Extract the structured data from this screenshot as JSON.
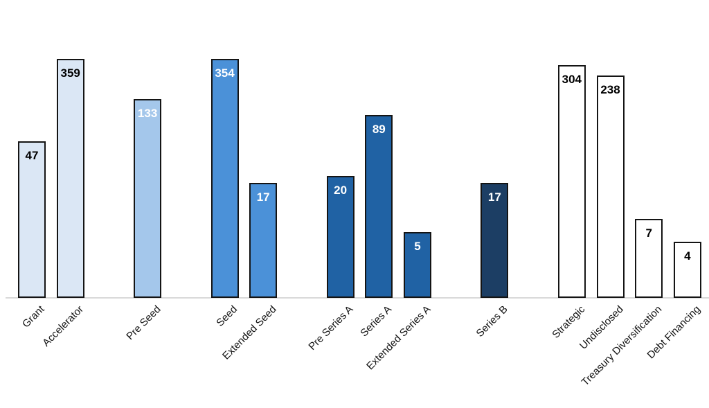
{
  "chart_data": {
    "type": "bar",
    "title": "",
    "y_scale": "log",
    "grid": false,
    "y_axis_visible": false,
    "data_labels_position": "inside-end",
    "categories": [
      "Grant",
      "Accelerator",
      "Pre Seed",
      "Seed",
      "Extended Seed",
      "Pre Series A",
      "Series A",
      "Extended Series A",
      "Series B",
      "Strategic",
      "Undisclosed",
      "Treasury Diversification",
      "Debt Financing"
    ],
    "values": [
      47,
      359,
      133,
      354,
      17,
      20,
      89,
      5,
      17,
      304,
      238,
      7,
      4
    ],
    "group_of_bar": [
      0,
      0,
      1,
      2,
      2,
      3,
      3,
      3,
      4,
      5,
      5,
      5,
      5
    ],
    "group_fills": [
      "#dbe7f5",
      "#a4c7eb",
      "#4b91d8",
      "#2062a4",
      "#1c3e64",
      "#ffffff"
    ],
    "group_label_colors": [
      "#000000",
      "#ffffff",
      "#ffffff",
      "#ffffff",
      "#ffffff",
      "#000000"
    ],
    "bar_border_color": "#141414",
    "axis_line_color": "#d9d9d9",
    "x_tick_label_color": "#111111"
  }
}
